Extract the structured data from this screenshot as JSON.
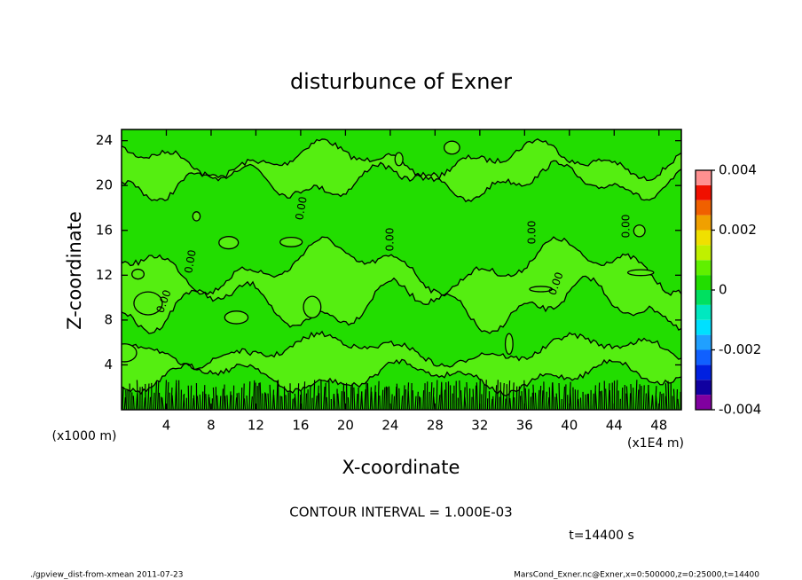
{
  "chart_data": {
    "type": "contour",
    "title": "disturbunce of Exner",
    "x_label": "X-coordinate",
    "y_label": "Z-coordinate",
    "x_unit_label": "(x1E4 m)",
    "y_unit_label": "(x1000 m)",
    "xlim": [
      0,
      50
    ],
    "xticks": [
      4,
      8,
      12,
      16,
      20,
      24,
      28,
      32,
      36,
      40,
      44,
      48
    ],
    "ylim": [
      0,
      25
    ],
    "yticks": [
      4,
      8,
      12,
      16,
      20,
      24
    ],
    "contour_label": "0.00",
    "colorbar": {
      "lim": [
        -0.004,
        0.004
      ],
      "ticks": [
        -0.004,
        -0.002,
        0,
        0.002,
        0.004
      ],
      "levels": [
        -0.004,
        -0.0035,
        -0.003,
        -0.0025,
        -0.002,
        -0.0015,
        -0.001,
        -0.0005,
        0,
        0.0005,
        0.001,
        0.0015,
        0.002,
        0.0025,
        0.003,
        0.0035,
        0.004
      ],
      "colors": [
        "#8000a0",
        "#1000a0",
        "#0020e0",
        "#1060ff",
        "#20a0ff",
        "#00e0ff",
        "#00e8c0",
        "#00e060",
        "#22dd00",
        "#60f000",
        "#c0f000",
        "#f0e000",
        "#f0a000",
        "#f06000",
        "#f01000",
        "#ff9090"
      ]
    },
    "contour_interval": "CONTOUR INTERVAL = 1.000E-03",
    "time_label": "t=14400 s",
    "footer_left": "./gpview_dist-from-xmean  2011-07-23",
    "footer_right": "MarsCond_Exner.nc@Exner,x=0:500000,z=0:25000,t=14400"
  }
}
